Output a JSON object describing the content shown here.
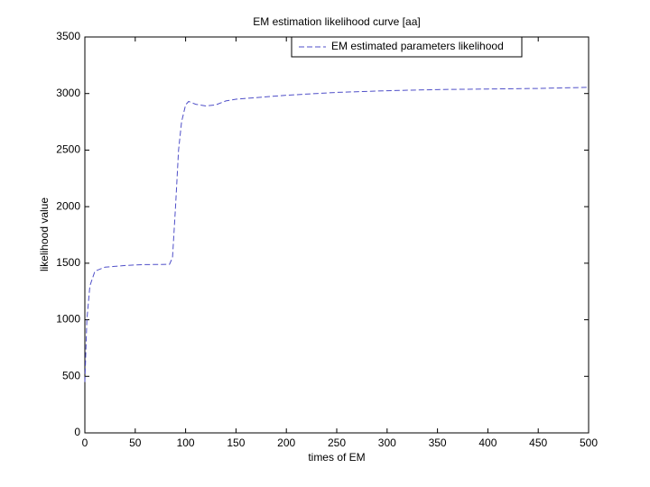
{
  "chart_data": {
    "type": "line",
    "title": "EM estimation likelihood curve [aa]",
    "x_label": "times of EM",
    "y_label": "likelihood value",
    "x": [
      0,
      2,
      5,
      10,
      20,
      40,
      60,
      84,
      87,
      90,
      93,
      96,
      100,
      103,
      110,
      120,
      130,
      140,
      150,
      200,
      250,
      300,
      350,
      400,
      450,
      500
    ],
    "series": [
      {
        "name": "EM estimated parameters likelihood",
        "color": "#4f4fc8",
        "values": [
          450,
          1000,
          1300,
          1430,
          1465,
          1480,
          1488,
          1490,
          1550,
          2000,
          2500,
          2750,
          2900,
          2930,
          2905,
          2890,
          2900,
          2935,
          2950,
          2985,
          3010,
          3025,
          3035,
          3040,
          3045,
          3055
        ]
      }
    ],
    "xlim": [
      0,
      500
    ],
    "xticks": [
      0,
      50,
      100,
      150,
      200,
      250,
      300,
      350,
      400,
      450,
      500
    ],
    "ylim": [
      0,
      3500
    ],
    "yticks": [
      0,
      500,
      1000,
      1500,
      2000,
      2500,
      3000,
      3500
    ],
    "legend": "top-right",
    "grid": false
  }
}
